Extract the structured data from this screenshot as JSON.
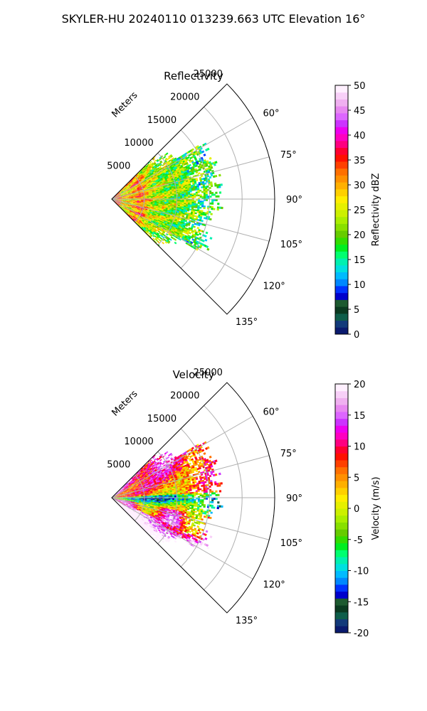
{
  "figure_title": "SKYLER-HU  20240110  013239.663 UTC Elevation 16°",
  "colors": {
    "grid": "#b0b0b0",
    "frame": "#000000",
    "reflectivity_palette": [
      "#0a1a6e",
      "#123a7a",
      "#0e5e4a",
      "#0a3a20",
      "#1d5a30",
      "#0000cc",
      "#0033ff",
      "#0088ff",
      "#00bbff",
      "#00e0e0",
      "#00f0b0",
      "#00ff70",
      "#00ee20",
      "#33dd00",
      "#66cc00",
      "#88e000",
      "#aaee00",
      "#ccf000",
      "#e6f000",
      "#ffee00",
      "#ffd000",
      "#ffb000",
      "#ff9000",
      "#ff7000",
      "#ff4000",
      "#ff1000",
      "#ff0030",
      "#ff0080",
      "#ff00c0",
      "#ee00ee",
      "#cc33ff",
      "#dd66ff",
      "#e888f0",
      "#f0b0f0",
      "#f8d0f8",
      "#fff0ff"
    ],
    "velocity_palette": [
      "#0a1a6e",
      "#123a7a",
      "#0e5e4a",
      "#0a3a20",
      "#1d5a30",
      "#0000cc",
      "#0033ff",
      "#0088ff",
      "#00bbff",
      "#00e0e0",
      "#00f0b0",
      "#00ff70",
      "#00ee20",
      "#33dd00",
      "#66cc00",
      "#88e000",
      "#aaee00",
      "#ccf000",
      "#e6f000",
      "#ffee00",
      "#ffd000",
      "#ffb000",
      "#ff9000",
      "#ff7000",
      "#ff4000",
      "#ff1000",
      "#ff0030",
      "#ff0080",
      "#ff00c0",
      "#ee00ee",
      "#cc33ff",
      "#dd66ff",
      "#e888f0",
      "#f0b0f0",
      "#f8d0f8",
      "#fff0ff"
    ]
  },
  "chart_data": [
    {
      "type": "heatmap",
      "projection": "polar-sector",
      "title": "Reflectivity",
      "range_axis_label": "Meters",
      "range_ticks": [
        5000,
        10000,
        15000,
        20000,
        25000
      ],
      "range_max": 25000,
      "azimuth_range_deg": [
        45,
        135
      ],
      "azimuth_ticks": [
        60,
        75,
        90,
        105,
        120,
        135
      ],
      "azimuth_tick_labels": [
        "60°",
        "75°",
        "90°",
        "105°",
        "120°",
        "135°"
      ],
      "grid": true,
      "colorbar": {
        "label": "Reflectivity dBZ",
        "min": 0,
        "max": 50,
        "ticks": [
          0,
          5,
          10,
          15,
          20,
          25,
          30,
          35,
          40,
          45,
          50
        ]
      },
      "data_extent_m": 16000,
      "field": "reflectivity"
    },
    {
      "type": "heatmap",
      "projection": "polar-sector",
      "title": "Velocity",
      "range_axis_label": "Meters",
      "range_ticks": [
        5000,
        10000,
        15000,
        20000,
        25000
      ],
      "range_max": 25000,
      "azimuth_range_deg": [
        45,
        135
      ],
      "azimuth_ticks": [
        60,
        75,
        90,
        105,
        120,
        135
      ],
      "azimuth_tick_labels": [
        "60°",
        "75°",
        "90°",
        "105°",
        "120°",
        "135°"
      ],
      "grid": true,
      "colorbar": {
        "label": "Velocity (m/s)",
        "min": -20,
        "max": 20,
        "ticks": [
          -20,
          -15,
          -10,
          -5,
          0,
          5,
          10,
          15,
          20
        ]
      },
      "data_extent_m": 16000,
      "field": "velocity"
    }
  ]
}
